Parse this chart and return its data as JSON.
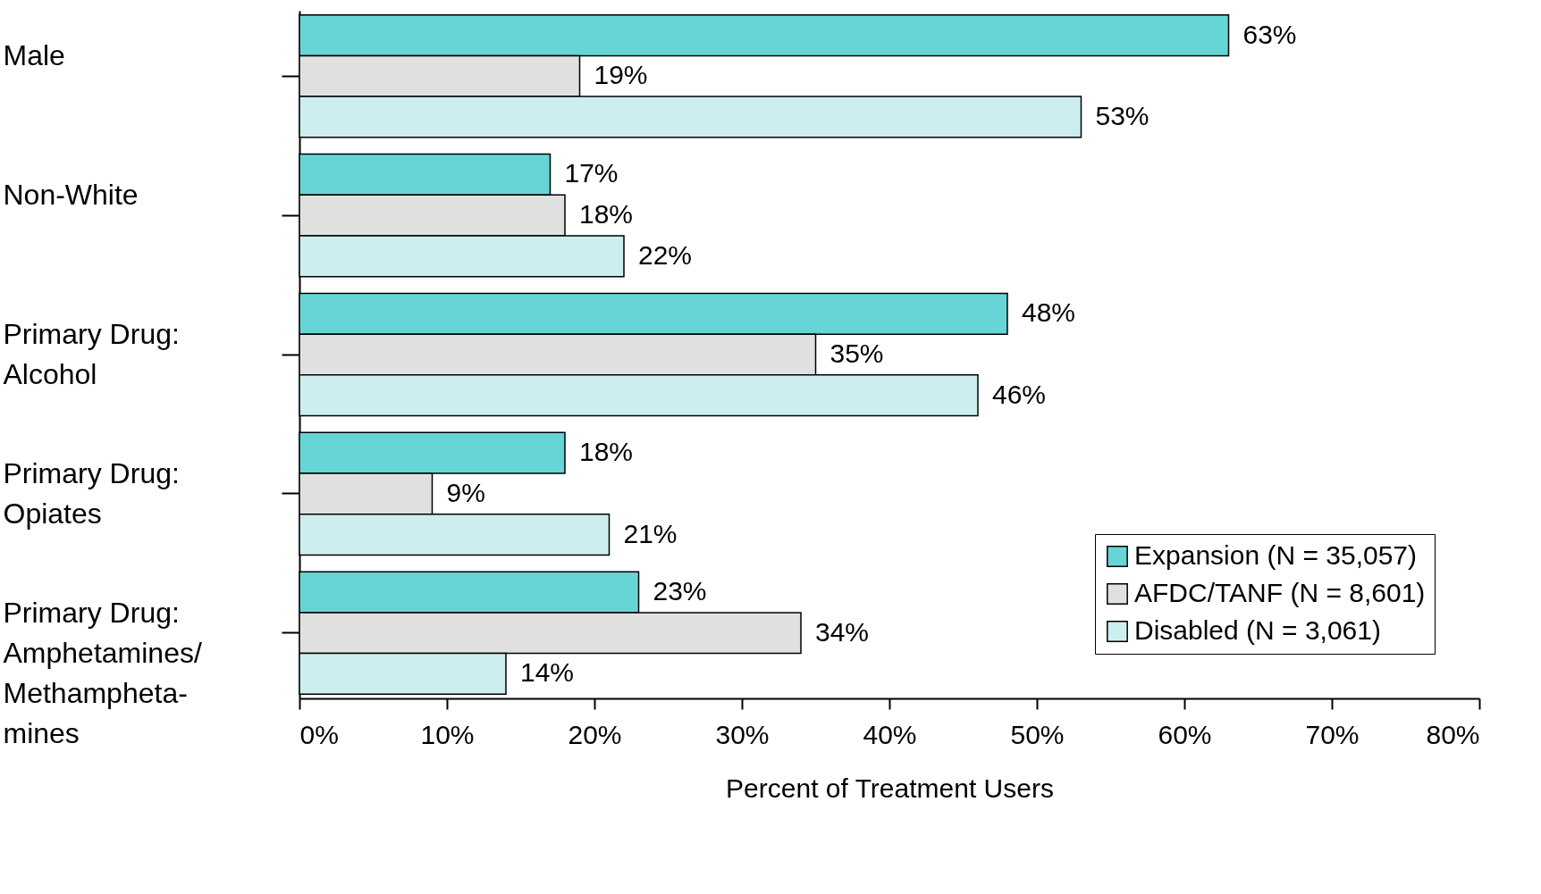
{
  "chart_data": {
    "type": "bar",
    "orientation": "horizontal",
    "xlabel": "Percent of Treatment Users",
    "categories": [
      "Male",
      "Non-White",
      "Primary Drug:\nAlcohol",
      "Primary Drug:\nOpiates",
      "Primary Drug:\nAmphetamines/\nMethampheta-\nmines"
    ],
    "series": [
      {
        "name": "Expansion (N = 35,057)",
        "color": "#66d5d5",
        "values": [
          63,
          17,
          48,
          18,
          23
        ],
        "value_labels": [
          "63%",
          "17%",
          "48%",
          "18%",
          "23%"
        ]
      },
      {
        "name": "AFDC/TANF (N = 8,601)",
        "color": "#e0e0e0",
        "values": [
          19,
          18,
          35,
          9,
          34
        ],
        "value_labels": [
          "19%",
          "18%",
          "35%",
          "9%",
          "34%"
        ]
      },
      {
        "name": "Disabled (N = 3,061)",
        "color": "#cdeeee",
        "values": [
          53,
          22,
          46,
          21,
          14
        ],
        "value_labels": [
          "53%",
          "22%",
          "46%",
          "21%",
          "14%"
        ]
      }
    ],
    "xlim": [
      0,
      80
    ],
    "xticks": [
      {
        "value": 0,
        "label": "0%"
      },
      {
        "value": 10,
        "label": "10%"
      },
      {
        "value": 20,
        "label": "20%"
      },
      {
        "value": 30,
        "label": "30%"
      },
      {
        "value": 40,
        "label": "40%"
      },
      {
        "value": 50,
        "label": "50%"
      },
      {
        "value": 60,
        "label": "60%"
      },
      {
        "value": 70,
        "label": "70%"
      },
      {
        "value": 80,
        "label": "80%"
      }
    ],
    "legend": "bottom right",
    "grid": false
  }
}
